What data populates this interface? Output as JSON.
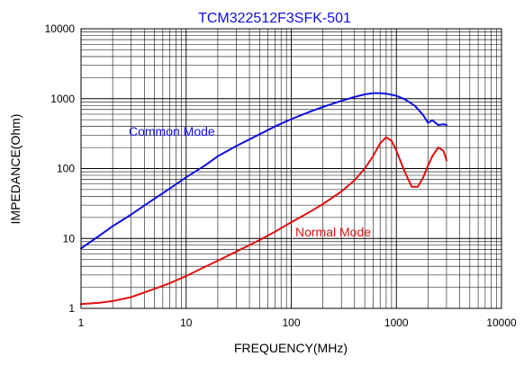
{
  "chart_data": {
    "type": "line",
    "title": "TCM322512F3SFK-501",
    "xlabel": "FREQUENCY(MHz)",
    "ylabel": "IMPEDANCE(Ohm)",
    "x_scale": "log",
    "y_scale": "log",
    "xlim": [
      1,
      10000
    ],
    "ylim": [
      1,
      10000
    ],
    "x_ticks": [
      "1",
      "10",
      "100",
      "1000",
      "10000"
    ],
    "y_ticks": [
      "1",
      "10",
      "100",
      "1000",
      "10000"
    ],
    "grid": true,
    "series": [
      {
        "name": "Common Mode",
        "color": "#1010e0",
        "x": [
          1,
          1.5,
          2,
          3,
          5,
          7,
          10,
          15,
          20,
          30,
          50,
          70,
          100,
          150,
          200,
          300,
          400,
          500,
          600,
          700,
          800,
          1000,
          1200,
          1500,
          1800,
          2000,
          2200,
          2500,
          2800,
          3000
        ],
        "y": [
          7.2,
          11,
          15,
          22,
          37,
          52,
          75,
          110,
          150,
          210,
          310,
          400,
          510,
          650,
          760,
          930,
          1060,
          1150,
          1200,
          1200,
          1180,
          1100,
          980,
          790,
          580,
          450,
          490,
          420,
          430,
          420
        ]
      },
      {
        "name": "Normal Mode",
        "color": "#e01010",
        "x": [
          1,
          1.5,
          2,
          3,
          5,
          7,
          10,
          15,
          20,
          30,
          50,
          70,
          100,
          150,
          200,
          300,
          400,
          500,
          600,
          700,
          800,
          900,
          1000,
          1200,
          1400,
          1600,
          1800,
          2000,
          2200,
          2500,
          2800,
          3000
        ],
        "y": [
          1.15,
          1.2,
          1.27,
          1.45,
          1.9,
          2.3,
          2.9,
          3.9,
          4.8,
          6.5,
          9.5,
          12.5,
          17,
          24,
          31,
          47,
          68,
          100,
          150,
          230,
          280,
          250,
          180,
          90,
          55,
          55,
          75,
          110,
          150,
          200,
          180,
          130
        ]
      }
    ]
  }
}
